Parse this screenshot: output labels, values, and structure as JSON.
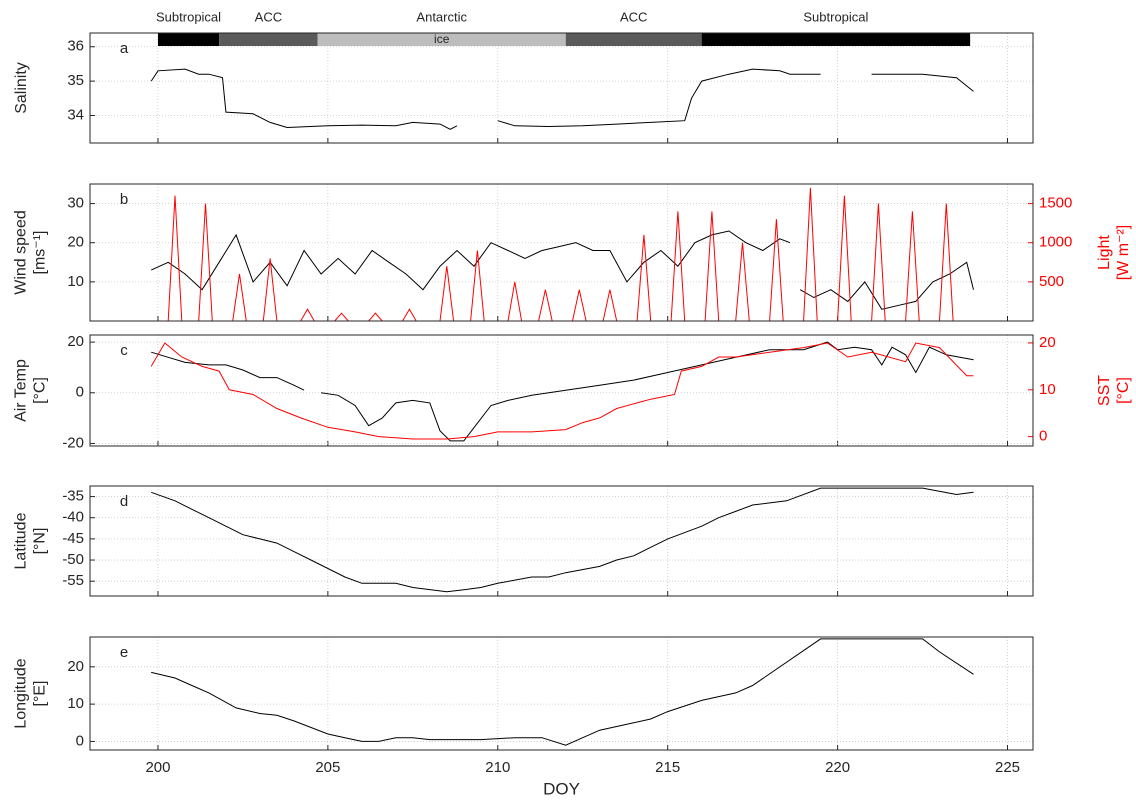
{
  "chart_data": [
    {
      "type": "line",
      "panel_label": "a",
      "ylabel": [
        "Salinity"
      ],
      "xlim": [
        198,
        225.75
      ],
      "xticks": [
        200,
        205,
        210,
        215,
        220,
        225
      ],
      "ylim": [
        33.2,
        36.4
      ],
      "yticks": [
        34,
        35,
        36
      ],
      "grid": true,
      "regions": [
        {
          "label": "Subtropical",
          "range": [
            200,
            201.8
          ],
          "color": "#000000"
        },
        {
          "label": "ACC",
          "range": [
            201.8,
            204.7
          ],
          "color": "#5a5a5a"
        },
        {
          "label": "Antarctic",
          "range": [
            204.7,
            212
          ],
          "color": "#bdbdbd",
          "note": "ice"
        },
        {
          "label": "ACC",
          "range": [
            212,
            216
          ],
          "color": "#5a5a5a"
        },
        {
          "label": "Subtropical",
          "range": [
            216,
            223.9
          ],
          "color": "#000000"
        }
      ],
      "series": [
        {
          "color": "#000000",
          "x": [
            199.8,
            200,
            200.8,
            201.2,
            201.5,
            201.9,
            202,
            202.8,
            203.3,
            203.8,
            205,
            206,
            207,
            207.5,
            208.3,
            208.6,
            208.8,
            209.4,
            210,
            210.5,
            211.5,
            212.5,
            213.5,
            214.5,
            215.5,
            215.7,
            216,
            216.8,
            217.5,
            218.3,
            218.6,
            219.5,
            220.3,
            221,
            222.5,
            223.5,
            224
          ],
          "values": [
            35,
            35.3,
            35.35,
            35.2,
            35.2,
            35.1,
            34.1,
            34.05,
            33.8,
            33.65,
            33.7,
            33.72,
            33.7,
            33.8,
            33.75,
            33.6,
            33.7,
            null,
            33.85,
            33.7,
            33.68,
            33.7,
            33.75,
            33.8,
            33.85,
            34.5,
            35,
            35.2,
            35.35,
            35.3,
            35.2,
            35.2,
            null,
            35.2,
            35.2,
            35.1,
            34.7
          ]
        }
      ]
    },
    {
      "type": "line",
      "panel_label": "b",
      "ylabel": [
        "Wind speed",
        "[ms⁻¹]"
      ],
      "y2label": [
        "Light",
        "[W m⁻²]"
      ],
      "xlim": [
        198,
        225.75
      ],
      "xticks": [
        200,
        205,
        210,
        215,
        220,
        225
      ],
      "ylim": [
        0,
        35
      ],
      "yticks": [
        10,
        20,
        30
      ],
      "y2lim": [
        0,
        1750
      ],
      "y2ticks": [
        500,
        1000,
        1500
      ],
      "grid": true,
      "series": [
        {
          "color": "#000000",
          "x": [
            199.8,
            200.3,
            200.8,
            201.3,
            201.8,
            202.3,
            202.8,
            203.3,
            203.8,
            204.3,
            204.8,
            205.3,
            205.8,
            206.3,
            206.8,
            207.3,
            207.8,
            208.3,
            208.8,
            209.3,
            209.8,
            210.3,
            210.8,
            211.3,
            211.8,
            212.3,
            212.8,
            213.3,
            213.8,
            214.3,
            214.8,
            215.3,
            215.8,
            216.3,
            216.8,
            217.3,
            217.8,
            218.3,
            218.6,
            218.75,
            218.9,
            219.3,
            219.8,
            220.3,
            220.8,
            221.3,
            221.8,
            222.3,
            222.8,
            223.3,
            223.8,
            224
          ],
          "values": [
            13,
            15,
            12,
            8,
            15,
            22,
            10,
            15,
            9,
            18,
            12,
            16,
            12,
            18,
            15,
            12,
            8,
            14,
            18,
            14,
            20,
            18,
            16,
            18,
            19,
            20,
            18,
            18,
            10,
            15,
            18,
            14,
            20,
            22,
            23,
            20,
            18,
            21,
            20,
            null,
            8,
            6,
            8,
            5,
            10,
            3,
            4,
            5,
            10,
            12,
            15,
            8
          ]
        },
        {
          "color": "#ff0000",
          "axis": "y2",
          "x": [
            198.3,
            200.3,
            200.5,
            200.7,
            201.2,
            201.4,
            201.6,
            202.2,
            202.4,
            202.6,
            203.1,
            203.3,
            203.5,
            204.2,
            204.4,
            204.6,
            205.2,
            205.4,
            205.6,
            206.2,
            206.4,
            206.6,
            207.2,
            207.4,
            207.6,
            208.3,
            208.5,
            208.7,
            209.2,
            209.4,
            209.6,
            210.3,
            210.5,
            210.7,
            211.2,
            211.4,
            211.6,
            212.2,
            212.4,
            212.6,
            213.1,
            213.3,
            213.5,
            214.1,
            214.3,
            214.5,
            215.1,
            215.3,
            215.5,
            216.1,
            216.3,
            216.5,
            217,
            217.2,
            217.4,
            218,
            218.2,
            218.4,
            219,
            219.2,
            219.4,
            220,
            220.2,
            220.4,
            221,
            221.2,
            221.4,
            222,
            222.2,
            222.4,
            223,
            223.2,
            223.4,
            224.1
          ],
          "values": [
            0,
            0,
            1600,
            0,
            0,
            1500,
            0,
            0,
            600,
            0,
            0,
            800,
            0,
            0,
            150,
            0,
            0,
            100,
            0,
            0,
            100,
            0,
            0,
            150,
            0,
            0,
            700,
            0,
            0,
            900,
            0,
            0,
            500,
            0,
            0,
            400,
            0,
            0,
            400,
            0,
            0,
            400,
            0,
            0,
            1100,
            0,
            0,
            1400,
            0,
            0,
            1400,
            0,
            0,
            1000,
            0,
            0,
            1300,
            0,
            0,
            1700,
            0,
            0,
            1600,
            0,
            0,
            1500,
            0,
            0,
            1400,
            0,
            0,
            1500,
            0,
            0
          ]
        }
      ]
    },
    {
      "type": "line",
      "panel_label": "c",
      "ylabel": [
        "Air Temp",
        "[°C]"
      ],
      "y2label": [
        "SST",
        "[°C]"
      ],
      "xlim": [
        198,
        225.75
      ],
      "xticks": [
        200,
        205,
        210,
        215,
        220,
        225
      ],
      "ylim": [
        -21,
        22.8
      ],
      "yticks": [
        -20,
        0,
        20
      ],
      "y2lim": [
        -2,
        21.7
      ],
      "y2ticks": [
        0,
        10,
        20
      ],
      "grid": true,
      "series": [
        {
          "color": "#000000",
          "x": [
            199.8,
            200.3,
            200.8,
            201.5,
            202,
            202.5,
            203,
            203.5,
            204,
            204.3,
            204.55,
            204.8,
            205.3,
            205.8,
            206.2,
            206.6,
            207,
            207.5,
            208,
            208.3,
            208.6,
            209,
            209.4,
            209.8,
            210.3,
            211,
            212,
            213,
            214,
            215,
            216,
            217,
            218,
            219,
            219.7,
            220,
            220.5,
            221,
            221.3,
            221.6,
            222,
            222.3,
            222.7,
            223.2,
            224
          ],
          "values": [
            16,
            14,
            12,
            11,
            11,
            9,
            6,
            6,
            3,
            1,
            null,
            0,
            -1,
            -5,
            -13,
            -10,
            -4,
            -3,
            -4,
            -15,
            -19,
            -19,
            -12,
            -5,
            -3,
            -1,
            1,
            3,
            5,
            8,
            11,
            14,
            17,
            17,
            20,
            17,
            18,
            17,
            11,
            18,
            15,
            8,
            18,
            15,
            13
          ]
        },
        {
          "color": "#ff0000",
          "axis": "y2",
          "x": [
            199.8,
            200.2,
            200.7,
            201.3,
            201.8,
            202.1,
            202.8,
            203.5,
            204.2,
            205,
            205.8,
            206.5,
            207.5,
            208.5,
            209.3,
            210,
            211,
            212,
            212.5,
            213,
            213.5,
            214,
            214.5,
            215.2,
            215.4,
            216,
            216.5,
            217,
            218,
            219,
            219.7,
            220.3,
            221,
            222,
            222.3,
            223,
            223.8,
            224
          ],
          "values": [
            15,
            20,
            17,
            15,
            14,
            10,
            9,
            6,
            4,
            2,
            1,
            0,
            -0.5,
            -0.5,
            0,
            1,
            1,
            1.5,
            3,
            4,
            6,
            7,
            8,
            9,
            14,
            15,
            17,
            17,
            18,
            19,
            20,
            17,
            18,
            16,
            20,
            19,
            13,
            13
          ]
        }
      ]
    },
    {
      "type": "line",
      "panel_label": "d",
      "ylabel": [
        "Latitude",
        "[°N]"
      ],
      "xlim": [
        198,
        225.75
      ],
      "xticks": [
        200,
        205,
        210,
        215,
        220,
        225
      ],
      "ylim": [
        -58.5,
        -32.5
      ],
      "yticks": [
        -55,
        -50,
        -45,
        -40,
        -35
      ],
      "grid": true,
      "series": [
        {
          "color": "#000000",
          "x": [
            199.8,
            200.5,
            201,
            201.5,
            202,
            202.5,
            203,
            203.5,
            204,
            204.5,
            205,
            205.5,
            206,
            207,
            207.5,
            208.5,
            209,
            209.5,
            210,
            211,
            211.5,
            212,
            213,
            213.5,
            214,
            214.5,
            215,
            216,
            216.5,
            217,
            217.5,
            218.5,
            219.5,
            222.5,
            223.5,
            224
          ],
          "values": [
            -34,
            -36,
            -38,
            -40,
            -42,
            -44,
            -45,
            -46,
            -48,
            -50,
            -52,
            -54,
            -55.5,
            -55.5,
            -56.5,
            -57.5,
            -57,
            -56.5,
            -55.5,
            -54,
            -54,
            -53,
            -51.5,
            -50,
            -49,
            -47,
            -45,
            -42,
            -40,
            -38.5,
            -37,
            -36,
            -33,
            -33,
            -34.5,
            -34
          ]
        }
      ]
    },
    {
      "type": "line",
      "panel_label": "e",
      "ylabel": [
        "Longitude",
        "[°E]"
      ],
      "xlabel": "DOY",
      "xtick_labels": true,
      "xlim": [
        198,
        225.75
      ],
      "xticks": [
        200,
        205,
        210,
        215,
        220,
        225
      ],
      "ylim": [
        -2.3,
        28
      ],
      "yticks": [
        0,
        10,
        20
      ],
      "grid": true,
      "series": [
        {
          "color": "#000000",
          "x": [
            199.8,
            200.5,
            201,
            201.5,
            202.3,
            203,
            203.5,
            204,
            205,
            205.5,
            206,
            206.5,
            207,
            207.5,
            208,
            209.5,
            210.5,
            211.3,
            212,
            212.5,
            213,
            214,
            214.5,
            215,
            216,
            217,
            217.5,
            219.5,
            222.5,
            223,
            224
          ],
          "values": [
            18.5,
            17,
            15,
            13,
            9,
            7.5,
            7,
            5.5,
            2,
            1,
            0,
            0,
            1,
            1,
            0.5,
            0.5,
            1,
            1,
            -1,
            1,
            3,
            5,
            6,
            8,
            11,
            13,
            15,
            27.5,
            27.5,
            24,
            18
          ]
        }
      ]
    }
  ]
}
